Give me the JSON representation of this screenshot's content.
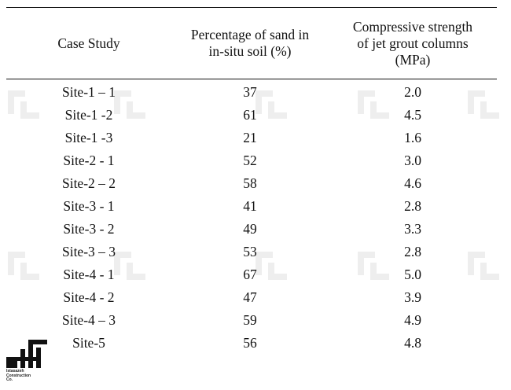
{
  "table": {
    "headers": {
      "case": "Case Study",
      "sand_line1": "Percentage of sand in",
      "sand_line2": "in-situ soil (%)",
      "strength_line1": "Compressive strength",
      "strength_line2": "of jet grout columns",
      "strength_line3": "(MPa)"
    },
    "rows": [
      {
        "case": "Site-1 – 1",
        "sand": "37",
        "strength": "2.0"
      },
      {
        "case": "Site-1 -2",
        "sand": "61",
        "strength": "4.5"
      },
      {
        "case": "Site-1 -3",
        "sand": "21",
        "strength": "1.6"
      },
      {
        "case": "Site-2 - 1",
        "sand": "52",
        "strength": "3.0"
      },
      {
        "case": "Site-2 – 2",
        "sand": "58",
        "strength": "4.6"
      },
      {
        "case": "Site-3 - 1",
        "sand": "41",
        "strength": "2.8"
      },
      {
        "case": "Site-3 - 2",
        "sand": "49",
        "strength": "3.3"
      },
      {
        "case": "Site-3 – 3",
        "sand": "53",
        "strength": "2.8"
      },
      {
        "case": "Site-4 - 1",
        "sand": "67",
        "strength": "5.0"
      },
      {
        "case": "Site-4 - 2",
        "sand": "47",
        "strength": "3.9"
      },
      {
        "case": "Site-4 – 3",
        "sand": "59",
        "strength": "4.9"
      },
      {
        "case": "Site-5",
        "sand": "56",
        "strength": "4.8"
      }
    ]
  },
  "logo": {
    "text_line1": "Istasazeh",
    "text_line2": "Construction",
    "text_line3": "Co.",
    "icon": "istasazeh-logo-icon"
  },
  "watermark": {
    "icon": "brand-watermark-icon",
    "color": "#eeeeee"
  }
}
